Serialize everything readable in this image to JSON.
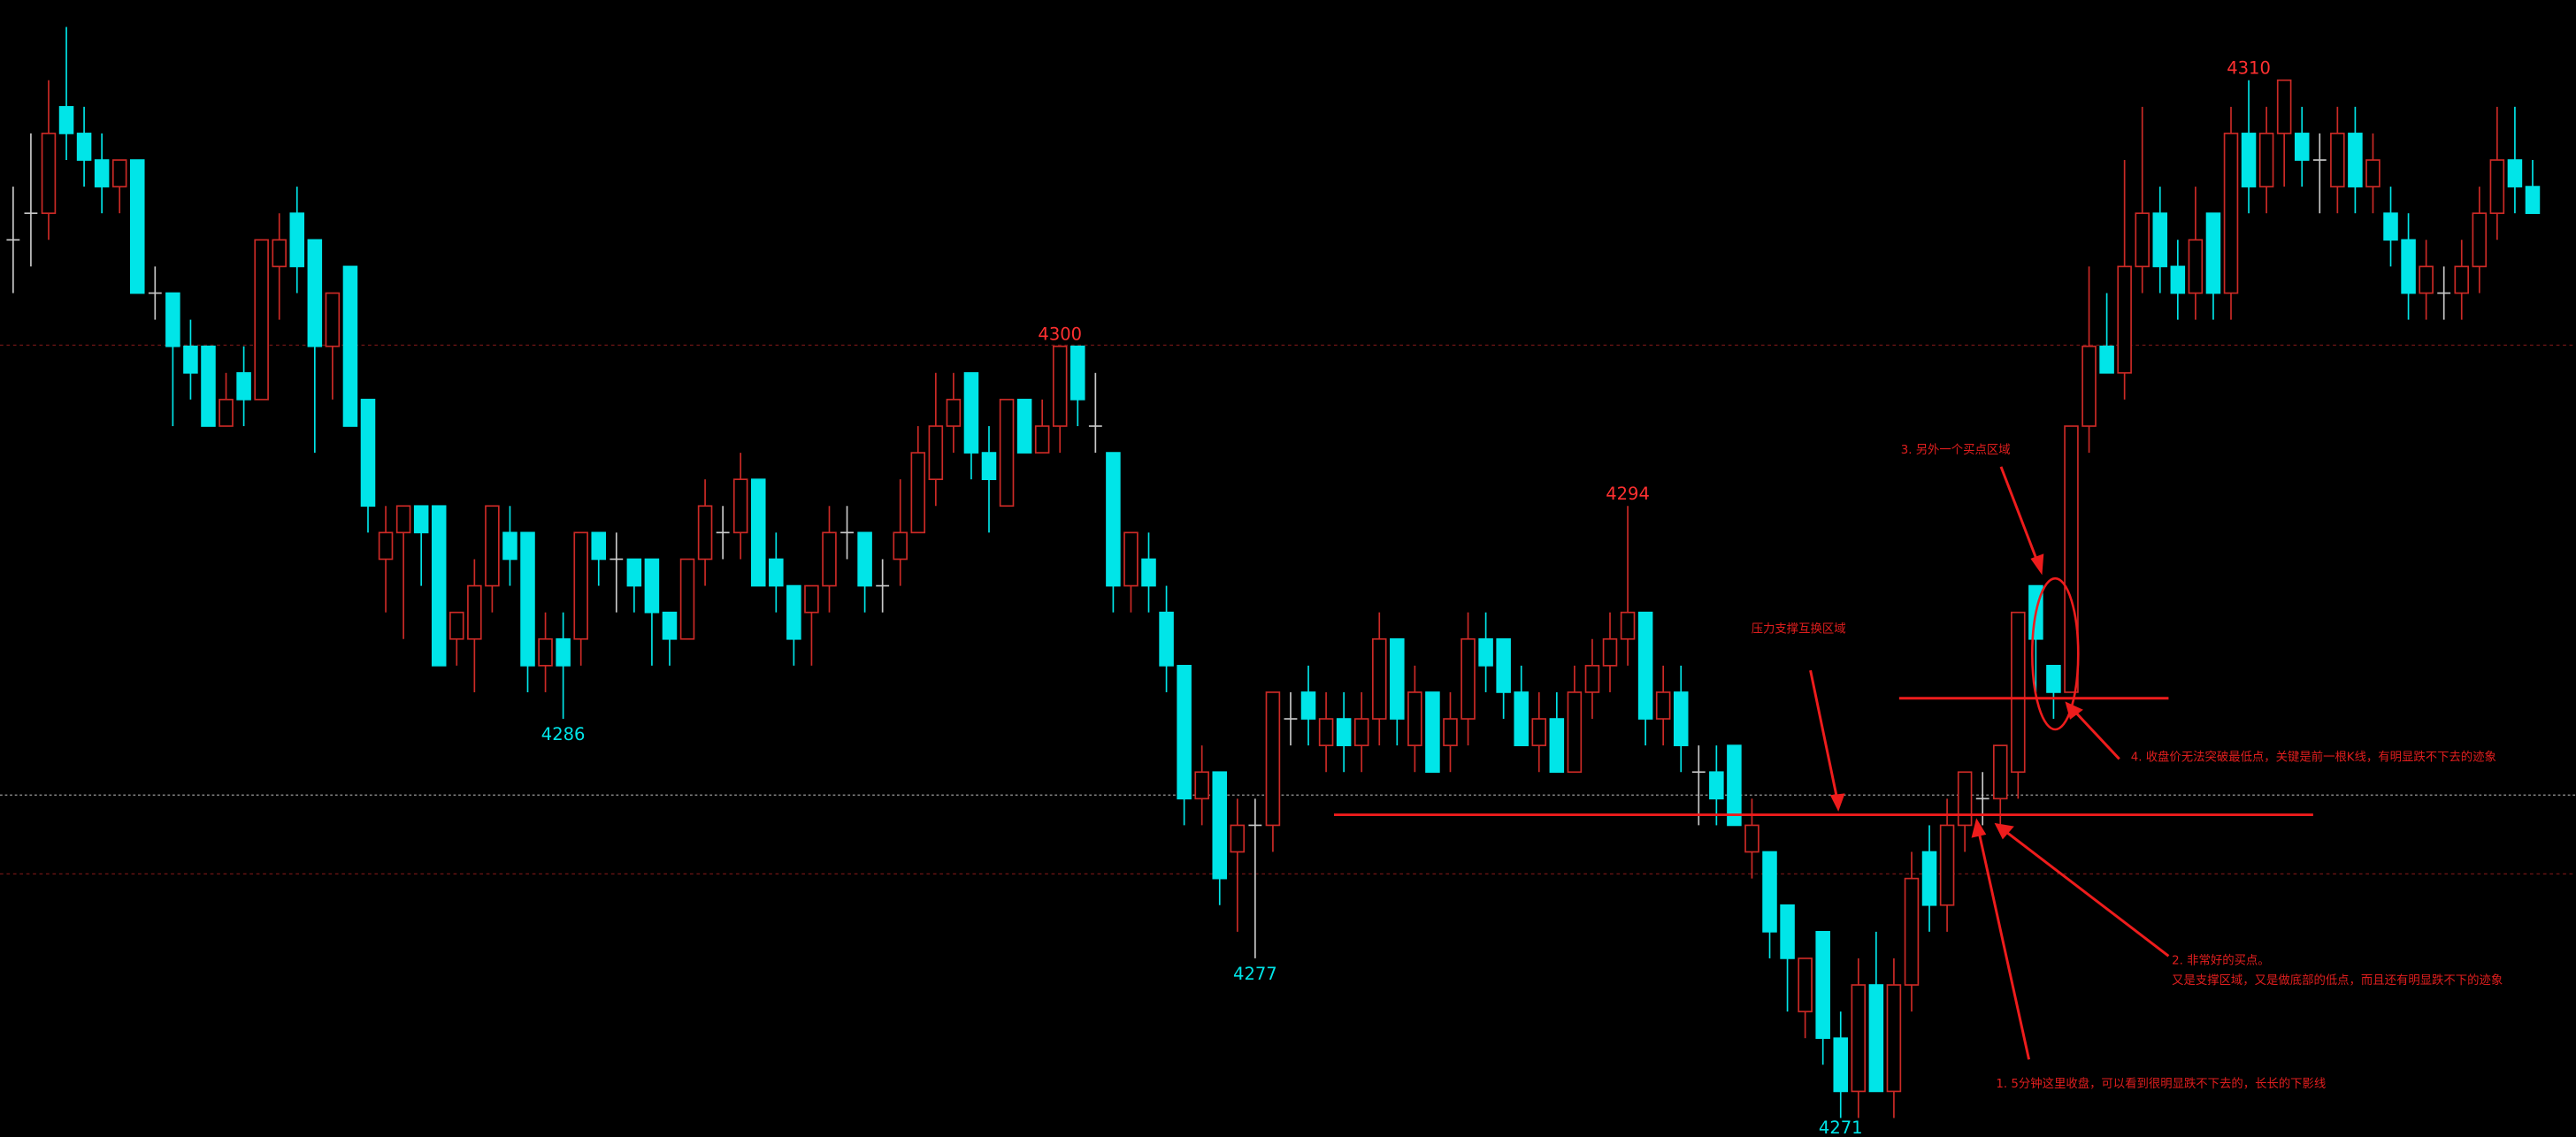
{
  "chart_data": {
    "type": "candlestick",
    "up_color": "#cc2a26",
    "down_color": "#00e5e8",
    "flat_color": "#c8c8c8",
    "high_label_color": "#ff3030",
    "low_label_color": "#00e5e8",
    "ylim": [
      4270.3,
      4313
    ],
    "open": [
      4304,
      4305,
      4305,
      4309,
      4308,
      4307,
      4306,
      4307,
      4302,
      4302,
      4300,
      4300,
      4297,
      4299,
      4298,
      4303,
      4305,
      4304,
      4300,
      4303,
      4298,
      4292,
      4293,
      4294,
      4294,
      4289,
      4289,
      4291,
      4293,
      4293,
      4288,
      4289,
      4289,
      4293,
      4292,
      4292,
      4292,
      4290,
      4289,
      4292,
      4293,
      4293,
      4295,
      4292,
      4291,
      4290,
      4291,
      4293,
      4293,
      4291,
      4292,
      4293,
      4295,
      4297,
      4299,
      4296,
      4294,
      4298,
      4296,
      4297,
      4300,
      4297,
      4296,
      4291,
      4292,
      4290,
      4288,
      4283,
      4284,
      4281,
      4282,
      4282,
      4286,
      4287,
      4285,
      4286,
      4285,
      4286,
      4289,
      4285,
      4287,
      4285,
      4286,
      4289,
      4289,
      4287,
      4285,
      4286,
      4284,
      4287,
      4288,
      4289,
      4290,
      4286,
      4287,
      4284,
      4284,
      4285,
      4281,
      4281,
      4279,
      4275,
      4278,
      4274,
      4272,
      4276,
      4272,
      4276,
      4281,
      4279,
      4282,
      4283,
      4283,
      4284,
      4291,
      4288,
      4287,
      4297,
      4300,
      4299,
      4303,
      4305,
      4303,
      4302,
      4305,
      4302,
      4308,
      4306,
      4308,
      4308,
      4307,
      4306,
      4308,
      4306,
      4305,
      4304,
      4302,
      4302,
      4302,
      4303,
      4305,
      4307,
      4306
    ],
    "high": [
      4306,
      4308,
      4310,
      4312,
      4309,
      4308,
      4307,
      4307,
      4303,
      4302,
      4301,
      4300,
      4299,
      4300,
      4304,
      4305,
      4306,
      4304,
      4302,
      4303,
      4298,
      4294,
      4294,
      4294,
      4294,
      4290,
      4292,
      4294,
      4294,
      4293,
      4290,
      4290,
      4293,
      4293,
      4293,
      4292,
      4292,
      4290,
      4292,
      4295,
      4294,
      4296,
      4295,
      4293,
      4291,
      4291,
      4294,
      4294,
      4293,
      4292,
      4295,
      4297,
      4299,
      4299,
      4299,
      4297,
      4298,
      4298,
      4298,
      4300,
      4300,
      4299,
      4296,
      4293,
      4293,
      4291,
      4288,
      4285,
      4284,
      4283,
      4283,
      4287,
      4287,
      4288,
      4287,
      4287,
      4287,
      4290,
      4289,
      4288,
      4287,
      4287,
      4290,
      4290,
      4289,
      4288,
      4287,
      4287,
      4288,
      4289,
      4290,
      4294,
      4290,
      4288,
      4288,
      4285,
      4285,
      4285,
      4283,
      4281,
      4279,
      4277,
      4278,
      4275,
      4277,
      4278,
      4277,
      4281,
      4282,
      4283,
      4284,
      4284,
      4285,
      4290,
      4291,
      4288,
      4297,
      4303,
      4302,
      4307,
      4309,
      4306,
      4304,
      4306,
      4305,
      4309,
      4310,
      4309,
      4310,
      4309,
      4308,
      4309,
      4309,
      4308,
      4306,
      4305,
      4304,
      4303,
      4304,
      4306,
      4309,
      4309,
      4307
    ],
    "low": [
      4302,
      4303,
      4304,
      4307,
      4306,
      4305,
      4305,
      4302,
      4301,
      4297,
      4298,
      4297,
      4297,
      4297,
      4298,
      4301,
      4302,
      4296,
      4298,
      4297,
      4293,
      4290,
      4289,
      4291,
      4288,
      4288,
      4287,
      4290,
      4291,
      4287,
      4287,
      4286,
      4288,
      4291,
      4290,
      4290,
      4288,
      4288,
      4289,
      4291,
      4292,
      4292,
      4291,
      4290,
      4288,
      4288,
      4290,
      4292,
      4290,
      4290,
      4291,
      4293,
      4294,
      4296,
      4295,
      4293,
      4294,
      4296,
      4296,
      4296,
      4297,
      4296,
      4290,
      4290,
      4290,
      4287,
      4282,
      4282,
      4279,
      4278,
      4277,
      4281,
      4285,
      4285,
      4284,
      4284,
      4284,
      4285,
      4285,
      4284,
      4284,
      4284,
      4285,
      4287,
      4286,
      4285,
      4284,
      4284,
      4284,
      4286,
      4287,
      4288,
      4285,
      4285,
      4284,
      4282,
      4282,
      4282,
      4280,
      4277,
      4275,
      4274,
      4273,
      4271,
      4271,
      4272,
      4271,
      4275,
      4278,
      4278,
      4281,
      4282,
      4282,
      4283,
      4287,
      4286,
      4287,
      4296,
      4299,
      4298,
      4302,
      4302,
      4301,
      4301,
      4301,
      4301,
      4305,
      4305,
      4306,
      4306,
      4305,
      4305,
      4305,
      4305,
      4303,
      4301,
      4301,
      4301,
      4301,
      4302,
      4304,
      4305,
      4305
    ],
    "close": [
      4304,
      4305,
      4308,
      4308,
      4307,
      4306,
      4307,
      4302,
      4302,
      4300,
      4299,
      4297,
      4298,
      4298,
      4304,
      4304,
      4303,
      4300,
      4302,
      4297,
      4294,
      4293,
      4294,
      4293,
      4288,
      4290,
      4291,
      4294,
      4292,
      4288,
      4289,
      4288,
      4293,
      4292,
      4292,
      4291,
      4290,
      4289,
      4292,
      4294,
      4293,
      4295,
      4291,
      4291,
      4289,
      4291,
      4293,
      4293,
      4291,
      4291,
      4293,
      4296,
      4297,
      4298,
      4296,
      4295,
      4298,
      4296,
      4297,
      4300,
      4298,
      4297,
      4291,
      4293,
      4291,
      4288,
      4283,
      4284,
      4280,
      4282,
      4282,
      4287,
      4286,
      4286,
      4286,
      4285,
      4286,
      4289,
      4286,
      4287,
      4284,
      4286,
      4289,
      4288,
      4287,
      4285,
      4286,
      4284,
      4287,
      4288,
      4289,
      4290,
      4286,
      4287,
      4285,
      4284,
      4283,
      4282,
      4282,
      4278,
      4277,
      4277,
      4274,
      4272,
      4276,
      4272,
      4276,
      4280,
      4279,
      4282,
      4284,
      4283,
      4285,
      4290,
      4289,
      4287,
      4297,
      4300,
      4299,
      4303,
      4305,
      4303,
      4302,
      4304,
      4302,
      4308,
      4306,
      4308,
      4310,
      4307,
      4307,
      4308,
      4306,
      4307,
      4304,
      4302,
      4303,
      4302,
      4303,
      4305,
      4307,
      4306,
      4305
    ],
    "high_labels": [
      4310,
      4300,
      4294
    ],
    "low_labels": [
      4286,
      4277,
      4271
    ],
    "annotations": [
      "压力支撑互换区域",
      "3. 另外一个买点区域",
      "4. 收盘价无法突破最低点，关键是前一根K线，有明显跌不下去的迹象",
      "2. 非常好的买点。",
      "又是支撑区域，又是做底部的低点，而且还有明显跌不下的迹象",
      "1. 5分钟这里收盘，可以看到很明显跌不下去的，长长的下影线"
    ]
  }
}
